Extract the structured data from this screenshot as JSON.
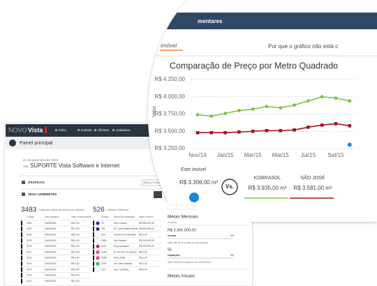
{
  "header": {
    "band_title": "mentares",
    "logo": "imóvel",
    "help_link": "Por que o gráfico não está c"
  },
  "chart_data": {
    "type": "line",
    "title": "Comparação de Preço por Metro Quadrado",
    "y_label": "Valor",
    "categories": [
      "Nov/14",
      null,
      "Jan/15",
      null,
      "Mar/15",
      null,
      "Mai/15",
      null,
      "Jul/15",
      null,
      "Set/15",
      null
    ],
    "series": [
      {
        "name": "KOBRASOL",
        "color": "#7cc24a",
        "marker": "circle",
        "line": true,
        "value_label": "R$ 3.935,00 m²",
        "values": [
          3740,
          3720,
          3760,
          3800,
          3820,
          3860,
          3840,
          3880,
          3940,
          4000,
          3980,
          3940
        ]
      },
      {
        "name": "SÃO JOSÉ",
        "color": "#a31420",
        "marker": "square",
        "line": true,
        "value_label": "R$ 3.581,00 m²",
        "values": [
          3480,
          3480,
          3480,
          3490,
          3500,
          3510,
          3510,
          3520,
          3560,
          3590,
          3610,
          3580
        ]
      },
      {
        "name": "Este imóvel",
        "color": "#1a86d6",
        "marker": "circle",
        "line": false,
        "value_label": "R$ 3.306,00 m²",
        "values": [
          null,
          null,
          null,
          null,
          null,
          null,
          null,
          null,
          null,
          null,
          null,
          3306
        ]
      }
    ],
    "versus": "Vs.",
    "ylim": [
      3250,
      4250
    ],
    "yticks": [
      {
        "value": 3250,
        "label": "R$ 3.250,00"
      },
      {
        "value": 3500,
        "label": "R$ 3.500,00"
      },
      {
        "value": 3750,
        "label": "R$ 3.750,00"
      },
      {
        "value": 4000,
        "label": "R$ 4.000,00"
      },
      {
        "value": 4250,
        "label": "R$ 4.250,00"
      }
    ],
    "grid": true
  },
  "dashboard": {
    "logo_a": "NOVO",
    "logo_b": "Vista",
    "menu": [
      "Início",
      "Imóveis",
      "Clientes",
      "Cadastros"
    ],
    "page_title": "Painel principal",
    "date": "22 de dezembro de 2015",
    "greeting": "Olá,",
    "user": "SUPORTE Vista Software e Internet",
    "charts_heading": "GRÁFICOS",
    "period": "Últimos 3 meses",
    "reminders_heading": "SEUS LEMBRETES",
    "left_count": "3483",
    "left_caption": "Captações ativas de imóveis por cadastro",
    "right_count": "526",
    "right_caption": "Clientes a Retornar",
    "left_columns": [
      "Código",
      "Data cadastro",
      "Valor venda padrão"
    ],
    "left_rows": [
      [
        "3182",
        "24/02/2015",
        "R$ 0,00"
      ],
      [
        "3181",
        "24/02/2015",
        "R$ 0,00"
      ],
      [
        "3180",
        "24/02/2015",
        "R$ 0,00"
      ],
      [
        "3179",
        "24/02/2015",
        "R$ 0,00"
      ],
      [
        "3178",
        "24/02/2015",
        "R$ 0,00"
      ],
      [
        "3177",
        "24/02/2015",
        "R$ 0,00"
      ],
      [
        "3176",
        "24/02/2015",
        "R$ 0,00"
      ],
      [
        "3175",
        "23/02/2015",
        "R$ 0,00"
      ],
      [
        "3174",
        "23/02/2015",
        "R$ 0,00"
      ],
      [
        "3173",
        "23/02/2015",
        "R$ 0,00"
      ],
      [
        "3172",
        "23/02/2015",
        "R$ 0,00"
      ]
    ],
    "right_columns": [
      "Código",
      "Nome/Denominação",
      "Valor Primeiro"
    ],
    "right_rows": [
      [
        "73",
        "Sem Vínculo",
        "R$ 560.000,00"
      ],
      [
        "281",
        "Pe. José Batista Rocha",
        "R$ 540.000,00"
      ],
      [
        "316",
        "Jeronimo De Almeida",
        "R$ 0,00"
      ],
      [
        "1926",
        "Sol. Kuester",
        "R$ 200.000,00"
      ],
      [
        "2412",
        "Eng Luis Baert",
        "R$ 300.000,00"
      ],
      [
        "2128",
        "St. Pio Flor De Santos",
        "R$ 0,00"
      ],
      [
        "1648",
        "Rose Zotta",
        "R$ 0,00"
      ],
      [
        "2378",
        "Sor. Mirna Marina",
        "R$ 0,00"
      ],
      [
        "2371",
        "Gen. Coimbrel",
        "R$ 0,00"
      ]
    ],
    "right_dot_colors": [
      "#2a2a8a",
      "#2a2a8a",
      "#ffffff",
      "#ffffff",
      "#c0286e",
      "#e040a0",
      "#e040a0",
      "#30c070",
      "#ffffff"
    ],
    "goals_heading": "Metas Mensais",
    "goals_scope": "Empresa",
    "sales_goal": "R$ 3.300.000,00",
    "sales_label": "Vendas",
    "sales_pct": "0%",
    "sales_note": "Meta mensal de vendas da sua empresa",
    "capture_goal": "55",
    "capture_label": "Captações",
    "capture_pct": "0%",
    "capture_note": "Meta mensal de captações da sua empresa",
    "annual_heading": "Metas Anuais"
  }
}
